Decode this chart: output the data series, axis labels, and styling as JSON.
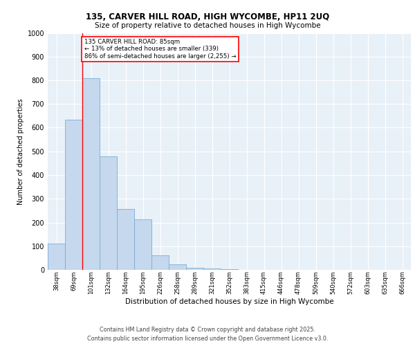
{
  "title1": "135, CARVER HILL ROAD, HIGH WYCOMBE, HP11 2UQ",
  "title2": "Size of property relative to detached houses in High Wycombe",
  "xlabel": "Distribution of detached houses by size in High Wycombe",
  "ylabel": "Number of detached properties",
  "categories": [
    "38sqm",
    "69sqm",
    "101sqm",
    "132sqm",
    "164sqm",
    "195sqm",
    "226sqm",
    "258sqm",
    "289sqm",
    "321sqm",
    "352sqm",
    "383sqm",
    "415sqm",
    "446sqm",
    "478sqm",
    "509sqm",
    "540sqm",
    "572sqm",
    "603sqm",
    "635sqm",
    "666sqm"
  ],
  "values": [
    110,
    635,
    810,
    480,
    258,
    212,
    62,
    22,
    10,
    5,
    2,
    0,
    0,
    0,
    0,
    0,
    0,
    0,
    0,
    0,
    0
  ],
  "bar_color": "#c5d8ed",
  "bar_edge_color": "#7aadd4",
  "red_line_x": 1.5,
  "annotation_box_text": "135 CARVER HILL ROAD: 85sqm\n← 13% of detached houses are smaller (339)\n86% of semi-detached houses are larger (2,255) →",
  "ylim": [
    0,
    1000
  ],
  "yticks": [
    0,
    100,
    200,
    300,
    400,
    500,
    600,
    700,
    800,
    900,
    1000
  ],
  "bg_color": "#e8f0f8",
  "footer1": "Contains HM Land Registry data © Crown copyright and database right 2025.",
  "footer2": "Contains public sector information licensed under the Open Government Licence v3.0."
}
